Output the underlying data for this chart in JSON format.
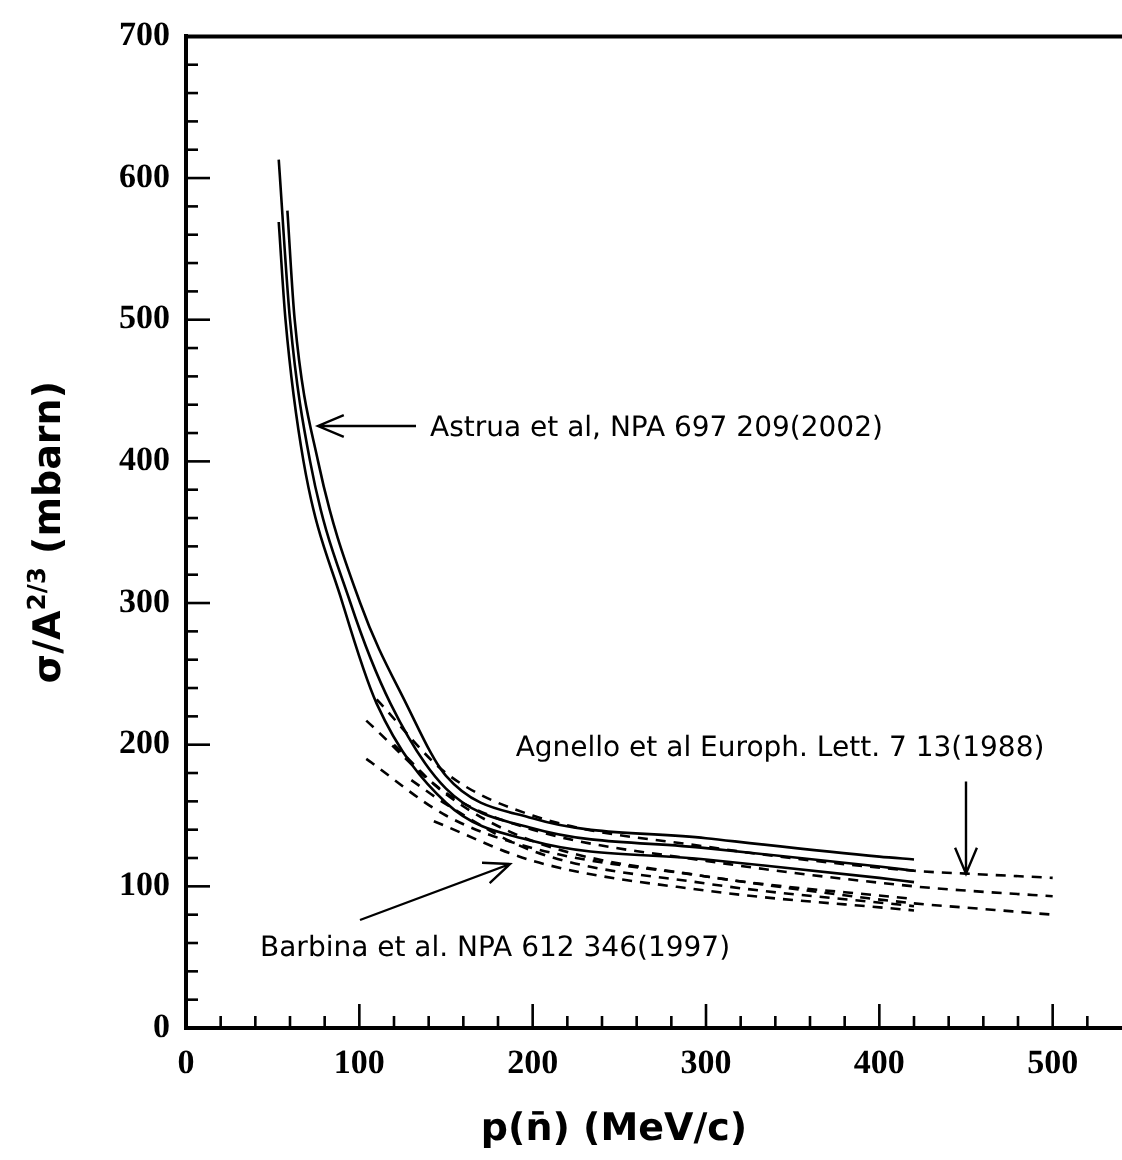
{
  "chart_data": {
    "type": "line",
    "xlabel": "p(n̄) (MeV/c)",
    "ylabel": "σ/A$^{2/3}$ (mbarn)",
    "xlim": [
      0,
      540
    ],
    "ylim": [
      0,
      700
    ],
    "xticks": [
      0,
      {
        "value": 20,
        "label": null
      },
      {
        "value": 40,
        "label": null
      },
      {
        "value": 60,
        "label": null
      },
      {
        "value": 80,
        "label": null
      },
      100,
      {
        "value": 120,
        "label": null
      },
      {
        "value": 140,
        "label": null
      },
      {
        "value": 160,
        "label": null
      },
      {
        "value": 180,
        "label": null
      },
      200,
      {
        "value": 220,
        "label": null
      },
      {
        "value": 240,
        "label": null
      },
      {
        "value": 260,
        "label": null
      },
      {
        "value": 280,
        "label": null
      },
      300,
      {
        "value": 320,
        "label": null
      },
      {
        "value": 340,
        "label": null
      },
      {
        "value": 360,
        "label": null
      },
      {
        "value": 380,
        "label": null
      },
      400,
      {
        "value": 420,
        "label": null
      },
      {
        "value": 440,
        "label": null
      },
      {
        "value": 460,
        "label": null
      },
      {
        "value": 480,
        "label": null
      },
      500,
      {
        "value": 520,
        "label": null
      }
    ],
    "yticks": [
      0,
      {
        "value": 20,
        "label": null
      },
      {
        "value": 40,
        "label": null
      },
      {
        "value": 60,
        "label": null
      },
      {
        "value": 80,
        "label": null
      },
      100,
      {
        "value": 120,
        "label": null
      },
      {
        "value": 140,
        "label": null
      },
      {
        "value": 160,
        "label": null
      },
      {
        "value": 180,
        "label": null
      },
      200,
      {
        "value": 220,
        "label": null
      },
      {
        "value": 240,
        "label": null
      },
      {
        "value": 260,
        "label": null
      },
      {
        "value": 280,
        "label": null
      },
      300,
      {
        "value": 320,
        "label": null
      },
      {
        "value": 340,
        "label": null
      },
      {
        "value": 360,
        "label": null
      },
      {
        "value": 380,
        "label": null
      },
      400,
      {
        "value": 420,
        "label": null
      },
      {
        "value": 440,
        "label": null
      },
      {
        "value": 460,
        "label": null
      },
      {
        "value": 480,
        "label": null
      },
      500,
      {
        "value": 520,
        "label": null
      },
      {
        "value": 540,
        "label": null
      },
      {
        "value": 560,
        "label": null
      },
      {
        "value": 580,
        "label": null
      },
      600,
      {
        "value": 620,
        "label": null
      },
      {
        "value": 640,
        "label": null
      },
      {
        "value": 660,
        "label": null
      },
      {
        "value": 680,
        "label": null
      },
      700
    ],
    "grid": false,
    "legend": false,
    "marker": "none",
    "series": [
      {
        "color": "#000000",
        "line_style": "solid",
        "x": [
          53.5,
          57.4,
          67.8,
          90.3,
          110,
          150,
          200,
          300,
          400,
          420
        ],
        "values": [
          569,
          500,
          400,
          300,
          229,
          159,
          132,
          119,
          106,
          103
        ]
      },
      {
        "color": "#000000",
        "line_style": "solid",
        "x": [
          53.5,
          60,
          71.6,
          94.9,
          118,
          150,
          200,
          300,
          400,
          420
        ],
        "values": [
          613,
          500,
          400,
          300,
          229,
          169,
          141,
          127,
          114,
          111
        ]
      },
      {
        "color": "#000000",
        "line_style": "solid",
        "x": [
          58.5,
          62.7,
          76.2,
          100.5,
          127,
          150,
          200,
          300,
          400,
          420
        ],
        "values": [
          577,
          500,
          400,
          300,
          229,
          178,
          148,
          134,
          121,
          119
        ]
      },
      {
        "color": "#000000",
        "line_style": "dashed",
        "x": [
          110,
          150,
          200,
          300,
          420,
          450,
          500
        ],
        "values": [
          232,
          180,
          150,
          128,
          111,
          109,
          106
        ]
      },
      {
        "color": "#000000",
        "line_style": "dashed",
        "x": [
          104,
          150,
          200,
          300,
          420,
          450,
          500
        ],
        "values": [
          217,
          166,
          140,
          118,
          100,
          97,
          93
        ]
      },
      {
        "color": "#000000",
        "line_style": "dashed",
        "x": [
          104,
          150,
          200,
          300,
          420,
          450,
          500
        ],
        "values": [
          190,
          150,
          127,
          107,
          88,
          85,
          80
        ]
      },
      {
        "color": "#000000",
        "line_style": "dashed",
        "x": [
          120,
          150,
          200,
          300,
          420
        ],
        "values": [
          200,
          165,
          132,
          107,
          91
        ]
      },
      {
        "color": "#000000",
        "line_style": "dashed",
        "x": [
          130,
          150,
          200,
          300,
          420
        ],
        "values": [
          175,
          158,
          125,
          102,
          86
        ]
      },
      {
        "color": "#000000",
        "line_style": "dashed",
        "x": [
          143,
          200,
          300,
          420
        ],
        "values": [
          146,
          118,
          97,
          83
        ]
      }
    ],
    "annotations": [
      "Astrua et al, NPA 697 209(2002)",
      {
        "text": "Agnello et al Europh. Lett. 7 13(1988)",
        "x": 450,
        "y": 109
      },
      "Barbina et al. NPA 612 346(1997)"
    ]
  }
}
